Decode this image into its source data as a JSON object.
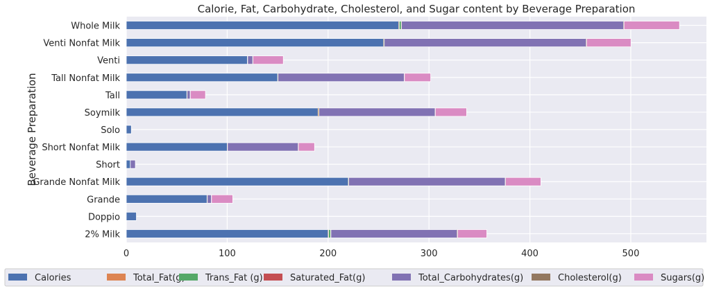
{
  "chart_data": {
    "type": "bar",
    "orientation": "horizontal",
    "stacked": true,
    "title": "Calorie, Fat, Carbohydrate, Cholesterol, and Sugar content by Beverage Preparation",
    "xlabel": "",
    "ylabel": "Beverage Preparation",
    "xlim": [
      0,
      575
    ],
    "x_ticks": [
      0,
      100,
      200,
      300,
      400,
      500
    ],
    "grid": true,
    "legend_position": "bottom",
    "categories": [
      "Whole Milk",
      "Venti Nonfat Milk",
      "Venti",
      "Tall Nonfat Milk",
      "Tall",
      "Soymilk",
      "Solo",
      "Short Nonfat Milk",
      "Short",
      "Grande Nonfat Milk",
      "Grande",
      "Doppio",
      "2% Milk"
    ],
    "series": [
      {
        "name": "Calories",
        "color": "#4c72b0",
        "values": [
          270,
          255,
          120,
          150,
          60,
          190,
          5,
          100,
          4,
          220,
          80,
          10,
          200
        ]
      },
      {
        "name": "Total_Fat(g)",
        "color": "#dd8452",
        "values": [
          0.5,
          0.3,
          0.1,
          0.2,
          0.1,
          0.5,
          0,
          0.1,
          0,
          0.2,
          0.1,
          0,
          0.5
        ]
      },
      {
        "name": "Trans_Fat (g)",
        "color": "#55a868",
        "values": [
          2,
          0.2,
          0.1,
          0.1,
          0.1,
          0.3,
          0,
          0.1,
          0,
          0.2,
          0.1,
          0,
          2
        ]
      },
      {
        "name": "Saturated_Fat(g)",
        "color": "#c44e52",
        "values": [
          0.3,
          0.2,
          0.1,
          0.1,
          0.1,
          0.2,
          0,
          0.1,
          0,
          0.1,
          0.1,
          0,
          0.3
        ]
      },
      {
        "name": "Total_Carbohydrates(g)",
        "color": "#8172b3",
        "values": [
          220,
          200,
          5,
          125,
          3,
          115,
          0,
          70,
          5,
          155,
          4,
          0,
          125
        ]
      },
      {
        "name": "Cholesterol(g)",
        "color": "#937860",
        "values": [
          0.5,
          0.5,
          0.3,
          0.3,
          0.2,
          0.3,
          0,
          0.3,
          0,
          0.4,
          0.2,
          0,
          0.5
        ]
      },
      {
        "name": "Sugars(g)",
        "color": "#da8bc3",
        "values": [
          55,
          44,
          30,
          26,
          15,
          31,
          0,
          16,
          0,
          35,
          21,
          0,
          29
        ]
      }
    ]
  }
}
